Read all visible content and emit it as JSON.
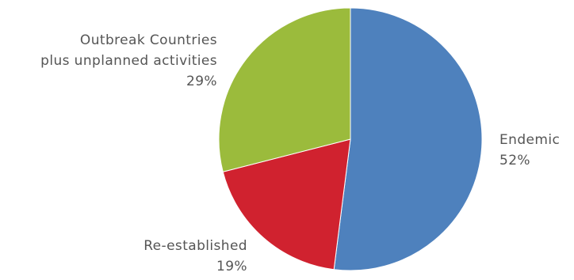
{
  "chart_data": {
    "type": "pie",
    "title": "",
    "slices": [
      {
        "label_lines": [
          "Endemic"
        ],
        "percent_label": "52%",
        "value": 52,
        "color": "#4e81bd"
      },
      {
        "label_lines": [
          "Re-established"
        ],
        "percent_label": "19%",
        "value": 19,
        "color": "#d0222f"
      },
      {
        "label_lines": [
          "Outbreak Countries",
          "plus unplanned activities"
        ],
        "percent_label": "29%",
        "value": 29,
        "color": "#9bbb3c"
      }
    ],
    "start_angle_deg": 0,
    "direction": "clockwise",
    "legend": "none"
  }
}
